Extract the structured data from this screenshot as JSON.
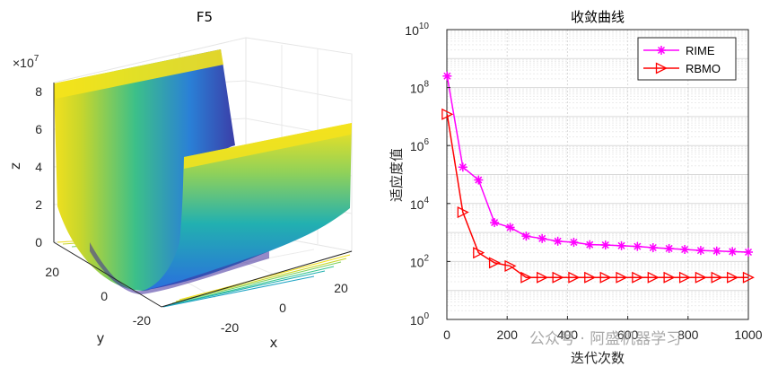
{
  "left_plot": {
    "title": "F5",
    "xlabel": "x",
    "ylabel": "y",
    "zlabel": "z",
    "z_multiplier": "×10",
    "z_multiplier_exp": "7",
    "z_ticks": [
      "0",
      "2",
      "4",
      "6",
      "8"
    ],
    "x_ticks": [
      "-20",
      "0",
      "20"
    ],
    "y_ticks": [
      "20",
      "0",
      "-20"
    ]
  },
  "chart_data": {
    "type": "line",
    "title": "收敛曲线",
    "xlabel": "迭代次数",
    "ylabel": "适应度值",
    "xlim": [
      0,
      1000
    ],
    "ylim_log10": [
      0,
      10
    ],
    "yscale": "log",
    "x_ticks": [
      "0",
      "200",
      "400",
      "600",
      "800",
      "1000"
    ],
    "y_tick_base": "10",
    "y_tick_exps": [
      "0",
      "2",
      "4",
      "6",
      "8",
      "10"
    ],
    "x": [
      1,
      53,
      105,
      158,
      210,
      263,
      316,
      368,
      421,
      474,
      526,
      579,
      632,
      684,
      737,
      789,
      842,
      895,
      947,
      1000
    ],
    "series": [
      {
        "name": "RIME",
        "color": "#ff00ff",
        "marker": "asterisk",
        "values": [
          250000000,
          180000,
          65000,
          2200,
          1500,
          750,
          620,
          500,
          460,
          380,
          370,
          350,
          330,
          300,
          280,
          260,
          240,
          230,
          220,
          210
        ]
      },
      {
        "name": "RBMO",
        "color": "#ff0000",
        "marker": "triangle-right",
        "values": [
          12000000,
          5000,
          200,
          90,
          70,
          28,
          28,
          28,
          28,
          28,
          28,
          28,
          28,
          28,
          28,
          28,
          28,
          28,
          28,
          28
        ]
      }
    ]
  },
  "watermark": "公众号 · 阿盛机器学习"
}
